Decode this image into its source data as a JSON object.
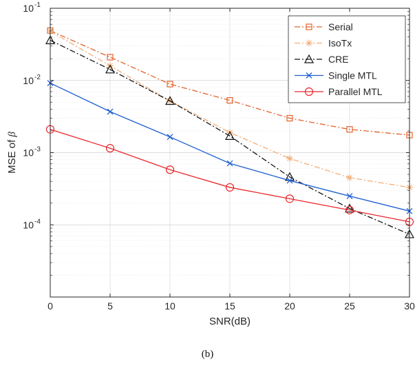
{
  "caption": "(b)",
  "chart_data": {
    "type": "line",
    "xlabel": "SNR(dB)",
    "ylabel_prefix": "MSE of ",
    "ylabel_symbol": "β",
    "yscale": "log",
    "xlim": [
      0,
      30
    ],
    "ylim": [
      1e-05,
      0.1
    ],
    "x_ticks": [
      0,
      5,
      10,
      15,
      20,
      25,
      30
    ],
    "y_ticks": [
      {
        "value": 0.1,
        "base": "10",
        "exp": "-1"
      },
      {
        "value": 0.01,
        "base": "10",
        "exp": "-2"
      },
      {
        "value": 0.001,
        "base": "10",
        "exp": "-3"
      },
      {
        "value": 0.0001,
        "base": "10",
        "exp": "-4"
      }
    ],
    "grid": true,
    "minor_grid": true,
    "legend_position": "top-right",
    "x": [
      0,
      5,
      10,
      15,
      20,
      25,
      30
    ],
    "series": [
      {
        "name": "Serial",
        "color": "#E2632B",
        "dash": "dashdot",
        "marker": "square",
        "values": [
          0.049,
          0.021,
          0.0089,
          0.0053,
          0.003,
          0.0021,
          0.00175
        ]
      },
      {
        "name": "IsoTx",
        "color": "#F2AE78",
        "dash": "dashdot",
        "marker": "asterisk",
        "values": [
          0.048,
          0.016,
          0.0052,
          0.0019,
          0.00083,
          0.00045,
          0.00033
        ]
      },
      {
        "name": "CRE",
        "color": "#111111",
        "dash": "dashdot",
        "marker": "triangle",
        "values": [
          0.036,
          0.0142,
          0.0052,
          0.0017,
          0.00046,
          0.000168,
          7.4e-05
        ]
      },
      {
        "name": "Single MTL",
        "color": "#1F5FD0",
        "dash": "solid",
        "marker": "x",
        "values": [
          0.0092,
          0.0037,
          0.00165,
          0.00071,
          0.00041,
          0.00025,
          0.000155
        ]
      },
      {
        "name": "Parallel MTL",
        "color": "#E8262B",
        "dash": "solid",
        "marker": "circle",
        "values": [
          0.0021,
          0.00115,
          0.00058,
          0.00033,
          0.00023,
          0.00016,
          0.00011
        ]
      }
    ]
  }
}
